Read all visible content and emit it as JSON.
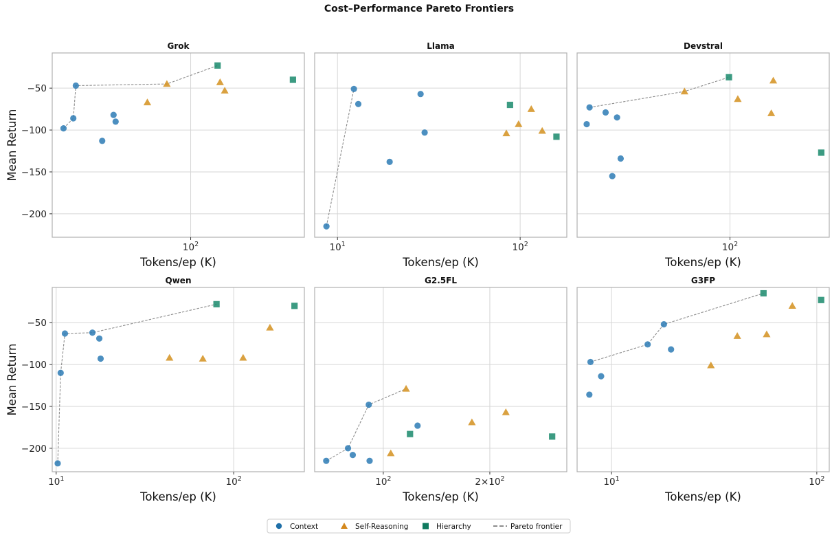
{
  "figure": {
    "title": "Cost–Performance Pareto Frontiers"
  },
  "legend": {
    "placement": "bottom-center",
    "entries": [
      {
        "label": "Context",
        "marker": "circle",
        "color": "#1f6fa8"
      },
      {
        "label": "Self-Reasoning",
        "marker": "triangle",
        "color": "#d4881c"
      },
      {
        "label": "Hierarchy",
        "marker": "square",
        "color": "#0f7a5f"
      },
      {
        "label": "Pareto frontier",
        "marker": "dashed-line",
        "color": "#8c8c8c"
      }
    ]
  },
  "colors": {
    "context": "#2d7bb5",
    "self_reasoning": "#d4911f",
    "hierarchy": "#1a8a6c",
    "frontier": "#8c8c8c",
    "grid": "#d6d6d6",
    "frame": "#b0b0b0"
  },
  "chart_data": [
    {
      "type": "scatter",
      "title": "Grok",
      "xlabel": "Tokens/ep (K)",
      "ylabel": "Mean Return",
      "xscale": "log",
      "xlim": [
        14.8,
        480
      ],
      "ylim": [
        -228,
        -8
      ],
      "xticks": [
        {
          "value": 100,
          "label": "10^2"
        }
      ],
      "yticks": [
        -200,
        -150,
        -100,
        -50
      ],
      "grid": true,
      "series": [
        {
          "name": "Context",
          "points": [
            [
              17.3,
              -98
            ],
            [
              19.8,
              -86
            ],
            [
              20.5,
              -47
            ],
            [
              29.5,
              -113
            ],
            [
              34.5,
              -82
            ],
            [
              35.5,
              -90
            ]
          ]
        },
        {
          "name": "Self-Reasoning",
          "points": [
            [
              55,
              -67
            ],
            [
              72,
              -45
            ],
            [
              150,
              -43
            ],
            [
              160,
              -53
            ]
          ]
        },
        {
          "name": "Hierarchy",
          "points": [
            [
              145,
              -23
            ],
            [
              410,
              -40
            ]
          ]
        }
      ],
      "frontier": [
        [
          17.3,
          -98
        ],
        [
          19.8,
          -86
        ],
        [
          20.5,
          -47
        ],
        [
          72,
          -45
        ],
        [
          145,
          -23
        ]
      ]
    },
    {
      "type": "scatter",
      "title": "Llama",
      "xlabel": "Tokens/ep (K)",
      "ylabel": "",
      "xscale": "log",
      "xlim": [
        7.5,
        180
      ],
      "ylim": [
        -228,
        -8
      ],
      "xticks": [
        {
          "value": 10,
          "label": "10^1"
        },
        {
          "value": 100,
          "label": "10^2"
        }
      ],
      "yticks": [
        -200,
        -150,
        -100,
        -50
      ],
      "grid": true,
      "series": [
        {
          "name": "Context",
          "points": [
            [
              8.7,
              -215
            ],
            [
              12.3,
              -51
            ],
            [
              13,
              -69
            ],
            [
              19.3,
              -138
            ],
            [
              28.5,
              -57
            ],
            [
              30,
              -103
            ]
          ]
        },
        {
          "name": "Self-Reasoning",
          "points": [
            [
              84,
              -104
            ],
            [
              98,
              -93
            ],
            [
              115,
              -75
            ],
            [
              132,
              -101
            ]
          ]
        },
        {
          "name": "Hierarchy",
          "points": [
            [
              88,
              -70
            ],
            [
              158,
              -108
            ]
          ]
        }
      ],
      "frontier": [
        [
          8.7,
          -215
        ],
        [
          12.3,
          -51
        ]
      ]
    },
    {
      "type": "scatter",
      "title": "Devstral",
      "xlabel": "Tokens/ep (K)",
      "ylabel": "",
      "xscale": "log",
      "xlim": [
        22.3,
        265
      ],
      "ylim": [
        -228,
        -8
      ],
      "xticks": [
        {
          "value": 100,
          "label": "10^2"
        }
      ],
      "yticks": [
        -200,
        -150,
        -100,
        -50
      ],
      "grid": true,
      "series": [
        {
          "name": "Context",
          "points": [
            [
              24.5,
              -93
            ],
            [
              25.2,
              -73
            ],
            [
              29.5,
              -79
            ],
            [
              31.5,
              -155
            ],
            [
              33,
              -85
            ],
            [
              34.2,
              -134
            ]
          ]
        },
        {
          "name": "Self-Reasoning",
          "points": [
            [
              64,
              -54
            ],
            [
              108,
              -63
            ],
            [
              150,
              -80
            ],
            [
              153,
              -41
            ]
          ]
        },
        {
          "name": "Hierarchy",
          "points": [
            [
              99,
              -37
            ],
            [
              245,
              -127
            ]
          ]
        }
      ],
      "frontier": [
        [
          25.2,
          -73
        ],
        [
          64,
          -54
        ],
        [
          99,
          -37
        ]
      ]
    },
    {
      "type": "scatter",
      "title": "Qwen",
      "xlabel": "Tokens/ep (K)",
      "ylabel": "Mean Return",
      "xscale": "log",
      "xlim": [
        9.5,
        250
      ],
      "ylim": [
        -228,
        -8
      ],
      "xticks": [
        {
          "value": 10,
          "label": "10^1"
        },
        {
          "value": 100,
          "label": "10^2"
        }
      ],
      "yticks": [
        -200,
        -150,
        -100,
        -50
      ],
      "grid": true,
      "series": [
        {
          "name": "Context",
          "points": [
            [
              10.2,
              -218
            ],
            [
              10.6,
              -110
            ],
            [
              11.2,
              -63
            ],
            [
              16,
              -62
            ],
            [
              17.5,
              -69
            ],
            [
              17.8,
              -93
            ]
          ]
        },
        {
          "name": "Self-Reasoning",
          "points": [
            [
              43.5,
              -92
            ],
            [
              67,
              -93
            ],
            [
              113,
              -92
            ],
            [
              160,
              -56
            ]
          ]
        },
        {
          "name": "Hierarchy",
          "points": [
            [
              80,
              -28
            ],
            [
              220,
              -30
            ]
          ]
        }
      ],
      "frontier": [
        [
          10.2,
          -218
        ],
        [
          10.6,
          -110
        ],
        [
          11.2,
          -63
        ],
        [
          16,
          -62
        ],
        [
          80,
          -28
        ]
      ]
    },
    {
      "type": "scatter",
      "title": "G2.5FL",
      "xlabel": "Tokens/ep (K)",
      "ylabel": "",
      "xscale": "log",
      "xlim": [
        64,
        330
      ],
      "ylim": [
        -228,
        -8
      ],
      "xticks": [
        {
          "value": 100,
          "label": "10^2"
        },
        {
          "value": 200,
          "label": "2×10^2"
        }
      ],
      "yticks": [
        -200,
        -150,
        -100,
        -50
      ],
      "grid": true,
      "series": [
        {
          "name": "Context",
          "points": [
            [
              69,
              -215
            ],
            [
              79.5,
              -200
            ],
            [
              82,
              -208
            ],
            [
              91,
              -148
            ],
            [
              91.5,
              -215
            ],
            [
              125,
              -173
            ]
          ]
        },
        {
          "name": "Self-Reasoning",
          "points": [
            [
              105,
              -206
            ],
            [
              116,
              -129
            ],
            [
              178,
              -169
            ],
            [
              222,
              -157
            ]
          ]
        },
        {
          "name": "Hierarchy",
          "points": [
            [
              119,
              -183
            ],
            [
              300,
              -186
            ]
          ]
        }
      ],
      "frontier": [
        [
          69,
          -215
        ],
        [
          79.5,
          -200
        ],
        [
          91,
          -148
        ],
        [
          116,
          -129
        ]
      ]
    },
    {
      "type": "scatter",
      "title": "G3FP",
      "xlabel": "Tokens/ep (K)",
      "ylabel": "",
      "xscale": "log",
      "xlim": [
        6.8,
        115
      ],
      "ylim": [
        -228,
        -8
      ],
      "xticks": [
        {
          "value": 10,
          "label": "10^1"
        },
        {
          "value": 100,
          "label": "10^2"
        }
      ],
      "yticks": [
        -200,
        -150,
        -100,
        -50
      ],
      "grid": true,
      "series": [
        {
          "name": "Context",
          "points": [
            [
              7.8,
              -136
            ],
            [
              7.9,
              -97
            ],
            [
              8.9,
              -114
            ],
            [
              15,
              -76
            ],
            [
              18,
              -52
            ],
            [
              19.5,
              -82
            ]
          ]
        },
        {
          "name": "Self-Reasoning",
          "points": [
            [
              30.5,
              -101
            ],
            [
              41,
              -66
            ],
            [
              57,
              -64
            ],
            [
              76,
              -30
            ]
          ]
        },
        {
          "name": "Hierarchy",
          "points": [
            [
              55,
              -15
            ],
            [
              105,
              -23
            ]
          ]
        }
      ],
      "frontier": [
        [
          7.9,
          -97
        ],
        [
          15,
          -76
        ],
        [
          18,
          -52
        ],
        [
          55,
          -15
        ]
      ]
    }
  ]
}
